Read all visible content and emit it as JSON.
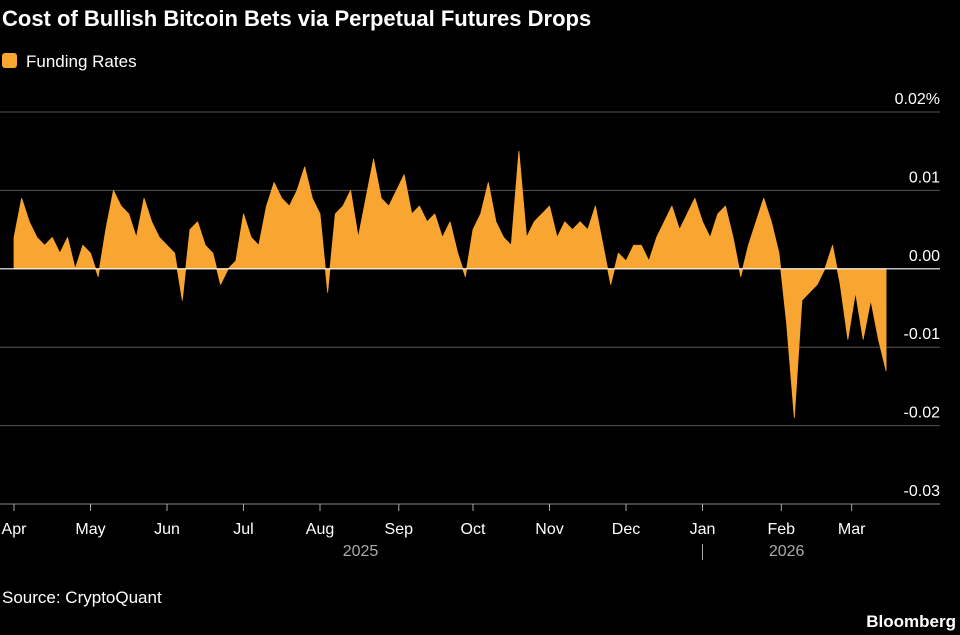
{
  "chart_data": {
    "type": "area",
    "title": "Cost of Bullish Bitcoin Bets via Perpetual Futures Drops",
    "source": "Source: CryptoQuant",
    "brand": "Bloomberg",
    "series": [
      {
        "name": "Funding Rates",
        "color": "#f8a531",
        "values": [
          0.004,
          0.009,
          0.006,
          0.004,
          0.003,
          0.004,
          0.002,
          0.004,
          0.0,
          0.003,
          0.002,
          -0.001,
          0.005,
          0.01,
          0.008,
          0.007,
          0.004,
          0.009,
          0.006,
          0.004,
          0.003,
          0.002,
          -0.004,
          0.005,
          0.006,
          0.003,
          0.002,
          -0.002,
          0.0,
          0.001,
          0.007,
          0.004,
          0.003,
          0.008,
          0.011,
          0.009,
          0.008,
          0.01,
          0.013,
          0.009,
          0.007,
          -0.003,
          0.007,
          0.008,
          0.01,
          0.004,
          0.009,
          0.014,
          0.009,
          0.008,
          0.01,
          0.012,
          0.007,
          0.008,
          0.006,
          0.007,
          0.004,
          0.006,
          0.002,
          -0.001,
          0.005,
          0.007,
          0.011,
          0.006,
          0.004,
          0.003,
          0.015,
          0.004,
          0.006,
          0.007,
          0.008,
          0.004,
          0.006,
          0.005,
          0.006,
          0.005,
          0.008,
          0.003,
          -0.002,
          0.002,
          0.001,
          0.003,
          0.003,
          0.001,
          0.004,
          0.006,
          0.008,
          0.005,
          0.007,
          0.009,
          0.006,
          0.004,
          0.007,
          0.008,
          0.004,
          -0.001,
          0.003,
          0.006,
          0.009,
          0.006,
          0.002,
          -0.007,
          -0.019,
          -0.004,
          -0.003,
          -0.002,
          0.0,
          0.003,
          -0.002,
          -0.009,
          -0.003,
          -0.009,
          -0.004,
          -0.009,
          -0.013
        ]
      }
    ],
    "xticks": [
      {
        "value": 0,
        "label": "Apr"
      },
      {
        "value": 10,
        "label": "May"
      },
      {
        "value": 20,
        "label": "Jun"
      },
      {
        "value": 30,
        "label": "Jul"
      },
      {
        "value": 40,
        "label": "Aug"
      },
      {
        "value": 50.3,
        "label": "Sep"
      },
      {
        "value": 60,
        "label": "Oct"
      },
      {
        "value": 70,
        "label": "Nov"
      },
      {
        "value": 80,
        "label": "Dec"
      },
      {
        "value": 90,
        "label": "Jan"
      },
      {
        "value": 100.3,
        "label": "Feb"
      },
      {
        "value": 109.5,
        "label": "Mar"
      }
    ],
    "xticks_years": [
      {
        "value": 45.3,
        "label": "2025"
      },
      {
        "value": 101,
        "label": "2026"
      }
    ],
    "ylim": [
      -0.03,
      0.02
    ],
    "yticks": [
      {
        "value": 0.02,
        "label": "0.02%"
      },
      0.01,
      {
        "value": 0,
        "label": "0.00"
      },
      -0.01,
      -0.02,
      -0.03
    ],
    "grid": true
  }
}
